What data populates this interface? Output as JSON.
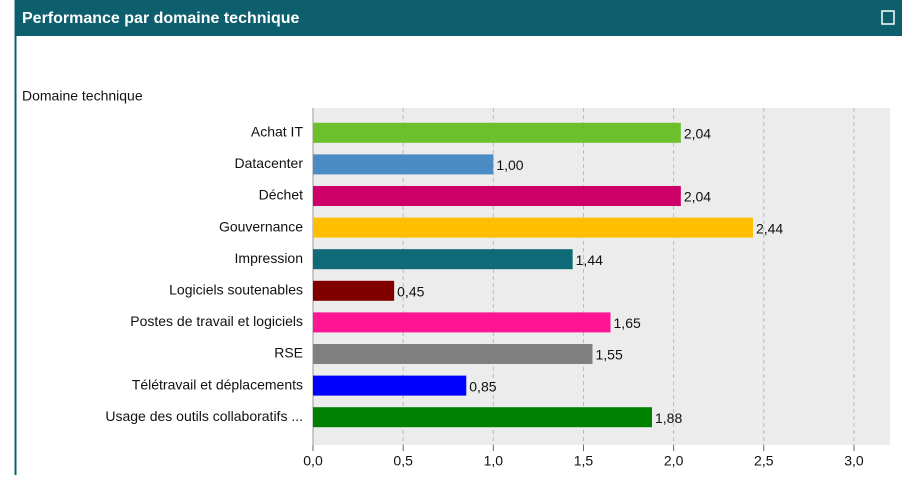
{
  "chart_data": {
    "type": "bar",
    "orientation": "horizontal",
    "title": "Performance par domaine technique",
    "y_label": "Domaine technique",
    "categories": [
      "Achat IT",
      "Datacenter",
      "Déchet",
      "Gouvernance",
      "Impression",
      "Logiciels soutenables",
      "Postes de travail et logiciels",
      "RSE",
      "Télétravail et déplacements",
      "Usage des outils collaboratifs ..."
    ],
    "values": [
      2.04,
      1.0,
      2.04,
      2.44,
      1.44,
      0.45,
      1.65,
      1.55,
      0.85,
      1.88
    ],
    "value_labels": [
      "2,04",
      "1,00",
      "2,04",
      "2,44",
      "1,44",
      "0,45",
      "1,65",
      "1,55",
      "0,85",
      "1,88"
    ],
    "colors": [
      "#6cc02c",
      "#4b8cc4",
      "#cc0066",
      "#ffbf00",
      "#0f6a78",
      "#800000",
      "#ff1493",
      "#808080",
      "#0000ff",
      "#008000"
    ],
    "xlim": [
      0,
      3.2
    ],
    "xticks": [
      {
        "value": 0,
        "label": "0,0"
      },
      {
        "value": 0.5,
        "label": "0,5"
      },
      {
        "value": 1,
        "label": "1,0"
      },
      {
        "value": 1.5,
        "label": "1,5"
      },
      {
        "value": 2,
        "label": "2,0"
      },
      {
        "value": 2.5,
        "label": "2,5"
      },
      {
        "value": 3,
        "label": "3,0"
      }
    ],
    "grid": true
  }
}
